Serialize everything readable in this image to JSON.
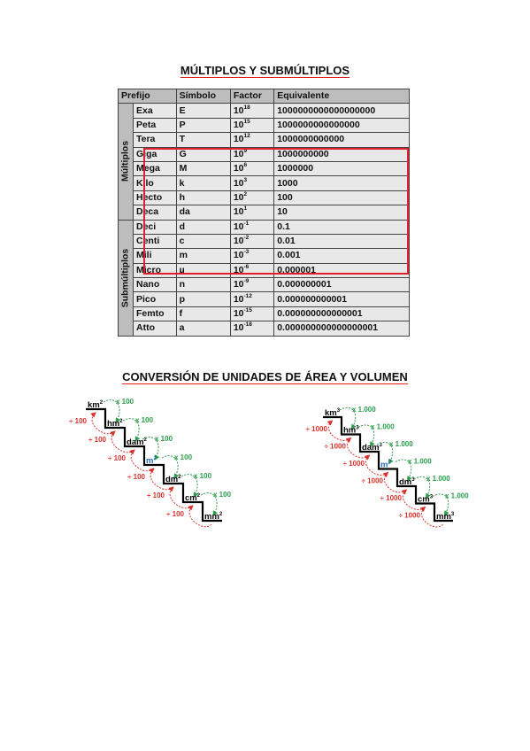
{
  "title1": "MÚLTIPLOS Y SUBMÚLTIPLOS",
  "title2": "CONVERSIÓN DE UNIDADES DE ÁREA Y VOLUMEN",
  "table": {
    "headers": [
      "Prefijo",
      "Símbolo",
      "Factor",
      "Equivalente"
    ],
    "group_multiples": "Múltiplos",
    "group_submultiples": "Submúltiplos",
    "rows": [
      {
        "prefix": "Exa",
        "symbol": "E",
        "base": "10",
        "exp": "18",
        "equiv": "1000000000000000000"
      },
      {
        "prefix": "Peta",
        "symbol": "P",
        "base": "10",
        "exp": "15",
        "equiv": "1000000000000000"
      },
      {
        "prefix": "Tera",
        "symbol": "T",
        "base": "10",
        "exp": "12",
        "equiv": "1000000000000"
      },
      {
        "prefix": "Giga",
        "symbol": "G",
        "base": "10",
        "exp": "9",
        "equiv": "1000000000"
      },
      {
        "prefix": "Mega",
        "symbol": "M",
        "base": "10",
        "exp": "6",
        "equiv": "1000000"
      },
      {
        "prefix": "Kilo",
        "symbol": "k",
        "base": "10",
        "exp": "3",
        "equiv": "1000"
      },
      {
        "prefix": "Hecto",
        "symbol": "h",
        "base": "10",
        "exp": "2",
        "equiv": "100"
      },
      {
        "prefix": "Deca",
        "symbol": "da",
        "base": "10",
        "exp": "1",
        "equiv": "10"
      },
      {
        "prefix": "Deci",
        "symbol": "d",
        "base": "10",
        "exp": "-1",
        "equiv": "0.1"
      },
      {
        "prefix": "Centi",
        "symbol": "c",
        "base": "10",
        "exp": "-2",
        "equiv": "0.01"
      },
      {
        "prefix": "Mili",
        "symbol": "m",
        "base": "10",
        "exp": "-3",
        "equiv": "0.001"
      },
      {
        "prefix": "Micro",
        "symbol": "µ",
        "base": "10",
        "exp": "-6",
        "equiv": "0.000001"
      },
      {
        "prefix": "Nano",
        "symbol": "n",
        "base": "10",
        "exp": "-9",
        "equiv": "0.000000001"
      },
      {
        "prefix": "Pico",
        "symbol": "p",
        "base": "10",
        "exp": "-12",
        "equiv": "0.000000000001"
      },
      {
        "prefix": "Femto",
        "symbol": "f",
        "base": "10",
        "exp": "-15",
        "equiv": "0.000000000000001"
      },
      {
        "prefix": "Atto",
        "symbol": "a",
        "base": "10",
        "exp": "-18",
        "equiv": "0.000000000000000001"
      }
    ]
  },
  "area": {
    "units": [
      "km",
      "hm",
      "dam",
      "m",
      "dm",
      "cm",
      "mm"
    ],
    "exp": "2",
    "down": "x 100",
    "up": "÷ 100"
  },
  "volume": {
    "units": [
      "km",
      "hm",
      "dam",
      "m",
      "dm",
      "cm",
      "mm"
    ],
    "exp": "3",
    "down": "x 1.000",
    "up": "÷ 1000"
  },
  "colors": {
    "highlight": "#e0202a",
    "green": "#2a9d4a",
    "red": "#d9302b",
    "meter": "#2e6fb8"
  }
}
